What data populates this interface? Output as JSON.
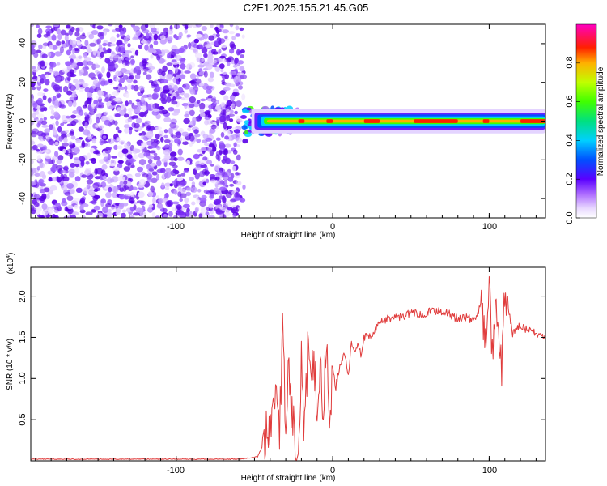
{
  "title": "C2E1.2025.155.21.45.G05",
  "chart_data": [
    {
      "type": "heatmap",
      "xlabel": "Height of straight line (km)",
      "ylabel": "Frequency (Hz)",
      "xlim": [
        -193,
        136
      ],
      "ylim": [
        -50,
        50
      ],
      "x_ticks": [
        "-100",
        "0",
        "100"
      ],
      "y_ticks": [
        "-40",
        "-20",
        "0",
        "20",
        "40"
      ],
      "colorbar": {
        "label": "Normalized spectral amplitude",
        "range": [
          0,
          1
        ],
        "ticks": [
          "0.0",
          "0.2",
          "0.4",
          "0.6",
          "0.8"
        ]
      },
      "regions": {
        "noise_x_range": [
          -193,
          -57
        ],
        "transition_x_range": [
          -57,
          -20
        ],
        "carrier_frequency": 0,
        "carrier_halfwidth": 4
      }
    },
    {
      "type": "line",
      "xlabel": "Height of straight line (km)",
      "ylabel": "SNR (10 * v/v)",
      "multiplier_label": "(x10",
      "multiplier_exp": "4",
      "multiplier_close": ")",
      "xlim": [
        -193,
        136
      ],
      "ylim": [
        0,
        2.35
      ],
      "x_ticks": [
        "-100",
        "0",
        "100"
      ],
      "y_ticks": [
        "0.5",
        "1.0",
        "1.5",
        "2.0"
      ],
      "color": "#e03c3c",
      "series": [
        {
          "x": [
            -193,
            -150,
            -100,
            -60,
            -48,
            -42,
            -38,
            -36,
            -34,
            -32,
            -30,
            -28,
            -26,
            -24,
            -22,
            -20,
            -18,
            -16,
            -14,
            -12,
            -10,
            -8,
            -6,
            -4,
            -2,
            0,
            2,
            5,
            8,
            10,
            12,
            14,
            16,
            18,
            20,
            25,
            30,
            35,
            40,
            45,
            50,
            55,
            60,
            65,
            70,
            75,
            80,
            85,
            90,
            95,
            98,
            100,
            102,
            104,
            106,
            108,
            110,
            115,
            120,
            125,
            130,
            136
          ],
          "values": [
            0.02,
            0.02,
            0.02,
            0.02,
            0.05,
            0.3,
            0.6,
            1.0,
            0.4,
            1.5,
            0.35,
            1.2,
            0.5,
            0.25,
            0.3,
            1.25,
            0.3,
            1.3,
            0.8,
            1.4,
            0.5,
            1.2,
            0.6,
            1.3,
            0.6,
            1.1,
            0.9,
            1.2,
            1.3,
            1.0,
            1.45,
            1.3,
            1.45,
            1.3,
            1.5,
            1.5,
            1.7,
            1.72,
            1.75,
            1.75,
            1.8,
            1.78,
            1.8,
            1.82,
            1.82,
            1.78,
            1.72,
            1.75,
            1.7,
            1.9,
            1.3,
            2.32,
            1.25,
            1.8,
            1.5,
            1.05,
            2.05,
            1.55,
            1.65,
            1.58,
            1.55,
            1.5
          ]
        }
      ]
    }
  ],
  "colors": {
    "snr_line": "#e03c3c",
    "noise_purple": "#5a00e6"
  }
}
